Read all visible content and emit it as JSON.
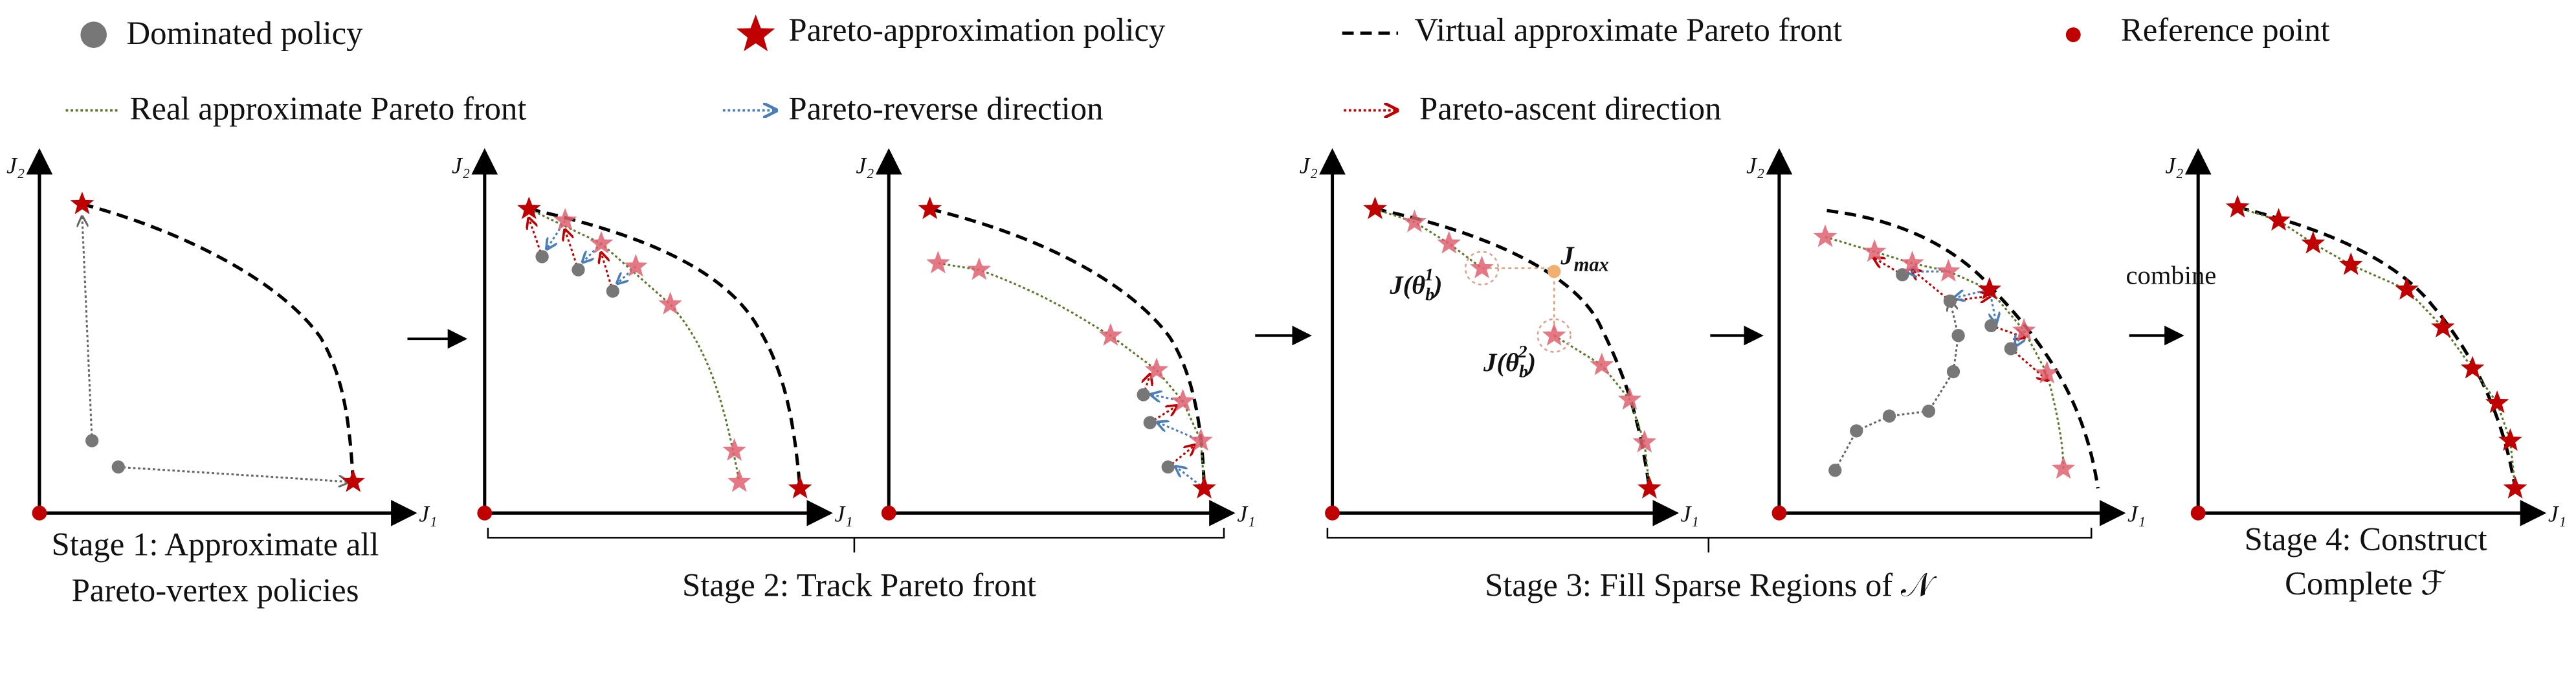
{
  "legend": {
    "items": [
      "Dominated policy",
      "Pareto-approximation policy",
      "Virtual approximate Pareto front",
      "Reference point",
      "Real approximate Pareto front",
      "Pareto-reverse direction",
      "Pareto-ascent direction"
    ]
  },
  "axes": {
    "x_label": "J₁",
    "y_label": "J₂"
  },
  "stages": [
    {
      "lines": [
        "Stage 1: Approximate all",
        "Pareto-vertex policies"
      ]
    },
    {
      "lines": [
        "Stage 2: Track Pareto front"
      ]
    },
    {
      "lines": [
        "Stage 3: Fill Sparse Regions of 𝒩"
      ]
    },
    {
      "lines": [
        "Stage 4: Construct",
        "Complete ℱ"
      ]
    }
  ],
  "annotations": {
    "combine": "combine",
    "j_max": {
      "base": "J",
      "sub": "max"
    },
    "j_theta_1": {
      "base": "J(θ",
      "sub": "b",
      "sup": "1",
      "close": ")"
    },
    "j_theta_2": {
      "base": "J(θ",
      "sub": "b",
      "sup": "2",
      "close": ")"
    }
  }
}
